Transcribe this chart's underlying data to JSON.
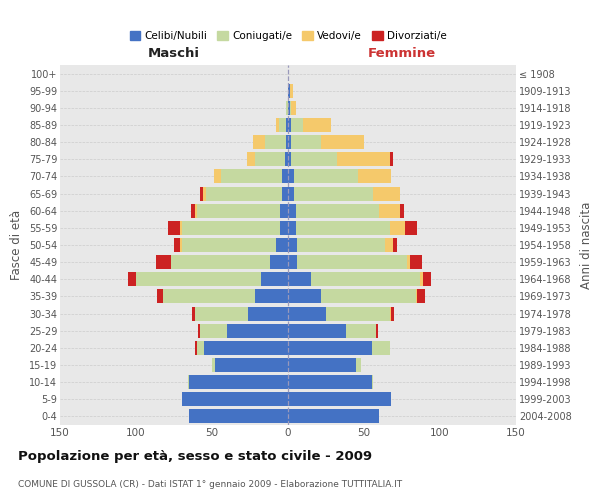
{
  "age_groups": [
    "0-4",
    "5-9",
    "10-14",
    "15-19",
    "20-24",
    "25-29",
    "30-34",
    "35-39",
    "40-44",
    "45-49",
    "50-54",
    "55-59",
    "60-64",
    "65-69",
    "70-74",
    "75-79",
    "80-84",
    "85-89",
    "90-94",
    "95-99",
    "100+"
  ],
  "birth_years": [
    "2004-2008",
    "1999-2003",
    "1994-1998",
    "1989-1993",
    "1984-1988",
    "1979-1983",
    "1974-1978",
    "1969-1973",
    "1964-1968",
    "1959-1963",
    "1954-1958",
    "1949-1953",
    "1944-1948",
    "1939-1943",
    "1934-1938",
    "1929-1933",
    "1924-1928",
    "1919-1923",
    "1914-1918",
    "1909-1913",
    "≤ 1908"
  ],
  "colors": {
    "celibi": "#4472C4",
    "coniugati": "#c5d9a0",
    "vedovi": "#f5c96b",
    "divorziati": "#cc2222"
  },
  "males": {
    "celibi": [
      65,
      70,
      65,
      48,
      55,
      40,
      26,
      22,
      18,
      12,
      8,
      5,
      5,
      4,
      4,
      2,
      1,
      1,
      0,
      0,
      0
    ],
    "coniugati": [
      0,
      0,
      1,
      2,
      5,
      18,
      35,
      60,
      82,
      65,
      62,
      65,
      55,
      50,
      40,
      20,
      14,
      5,
      1,
      0,
      0
    ],
    "vedovi": [
      0,
      0,
      0,
      0,
      0,
      0,
      0,
      0,
      0,
      0,
      1,
      1,
      1,
      2,
      5,
      5,
      8,
      2,
      0,
      0,
      0
    ],
    "divorziati": [
      0,
      0,
      0,
      0,
      1,
      1,
      2,
      4,
      5,
      10,
      4,
      8,
      3,
      2,
      0,
      0,
      0,
      0,
      0,
      0,
      0
    ]
  },
  "females": {
    "celibi": [
      60,
      68,
      55,
      45,
      55,
      38,
      25,
      22,
      15,
      6,
      6,
      5,
      5,
      4,
      4,
      2,
      2,
      2,
      1,
      1,
      0
    ],
    "coniugati": [
      0,
      0,
      1,
      3,
      12,
      20,
      42,
      62,
      72,
      72,
      58,
      62,
      55,
      52,
      42,
      30,
      20,
      8,
      1,
      0,
      0
    ],
    "vedovi": [
      0,
      0,
      0,
      0,
      0,
      0,
      1,
      1,
      2,
      2,
      5,
      10,
      14,
      18,
      22,
      35,
      28,
      18,
      3,
      2,
      0
    ],
    "divorziati": [
      0,
      0,
      0,
      0,
      0,
      1,
      2,
      5,
      5,
      8,
      3,
      8,
      2,
      0,
      0,
      2,
      0,
      0,
      0,
      0,
      0
    ]
  },
  "title": "Popolazione per età, sesso e stato civile - 2009",
  "subtitle": "COMUNE DI GUSSOLA (CR) - Dati ISTAT 1° gennaio 2009 - Elaborazione TUTTITALIA.IT",
  "xlabel_maschi": "Maschi",
  "xlabel_femmine": "Femmine",
  "ylabel_left": "Fasce di età",
  "ylabel_right": "Anni di nascita",
  "xlim": 150,
  "legend_labels": [
    "Celibi/Nubili",
    "Coniugati/e",
    "Vedovi/e",
    "Divorziati/e"
  ],
  "bg_color": "#f0f0f0",
  "bar_bg_color": "#ffffff",
  "plot_bg_color": "#e8e8e8"
}
